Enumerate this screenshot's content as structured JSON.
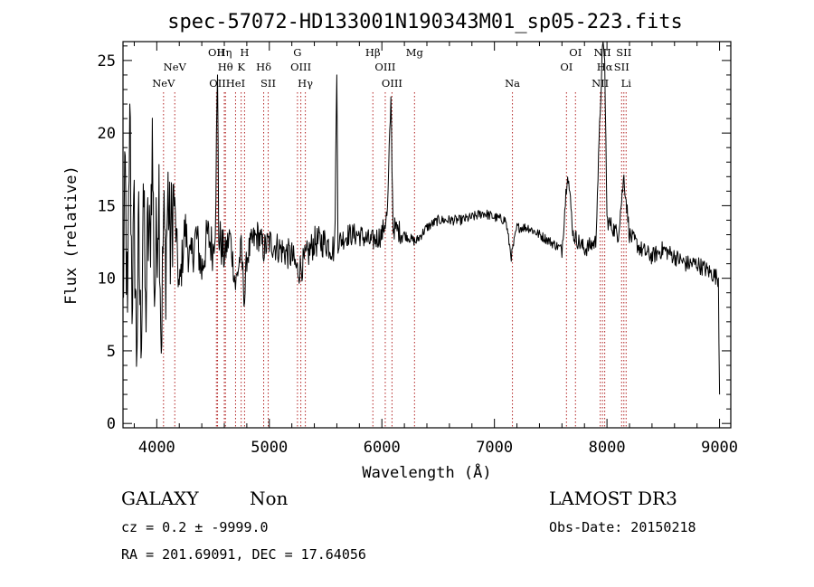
{
  "chart_data": {
    "type": "line",
    "title": "spec-57072-HD133001N190343M01_sp05-223.fits",
    "xlabel": "Wavelength (Å)",
    "ylabel": "Flux (relative)",
    "xlim": [
      3700,
      9100
    ],
    "ylim": [
      -0.3,
      26.3
    ],
    "x_ticks": [
      4000,
      5000,
      6000,
      7000,
      8000,
      9000
    ],
    "y_ticks": [
      0,
      5,
      10,
      15,
      20,
      25
    ],
    "series": [
      {
        "anchors": [
          [
            3700,
            8.0
          ],
          [
            3720,
            17.0
          ],
          [
            3740,
            6.0
          ],
          [
            3760,
            22.0
          ],
          [
            3780,
            9.0
          ],
          [
            3800,
            14.0
          ],
          [
            3820,
            5.0
          ],
          [
            3840,
            13.0
          ],
          [
            3860,
            4.5
          ],
          [
            3880,
            17.5
          ],
          [
            3900,
            7.0
          ],
          [
            3920,
            13.0
          ],
          [
            3940,
            12.0
          ],
          [
            3960,
            19.5
          ],
          [
            3980,
            9.0
          ],
          [
            4000,
            13.0
          ],
          [
            4020,
            16.5
          ],
          [
            4040,
            5.5
          ],
          [
            4060,
            14.0
          ],
          [
            4080,
            11.0
          ],
          [
            4100,
            16.0
          ],
          [
            4120,
            12.0
          ],
          [
            4150,
            16.0
          ],
          [
            4200,
            9.0
          ],
          [
            4250,
            13.5
          ],
          [
            4300,
            11.0
          ],
          [
            4350,
            13.0
          ],
          [
            4400,
            10.5
          ],
          [
            4450,
            13.0
          ],
          [
            4500,
            12.0
          ],
          [
            4520,
            14.0
          ],
          [
            4540,
            24.0
          ],
          [
            4550,
            13.0
          ],
          [
            4600,
            11.5
          ],
          [
            4650,
            13.0
          ],
          [
            4700,
            9.5
          ],
          [
            4750,
            12.0
          ],
          [
            4780,
            8.5
          ],
          [
            4800,
            11.5
          ],
          [
            4850,
            12.5
          ],
          [
            4900,
            13.0
          ],
          [
            4950,
            12.0
          ],
          [
            5000,
            12.5
          ],
          [
            5100,
            12.0
          ],
          [
            5200,
            11.5
          ],
          [
            5250,
            10.5
          ],
          [
            5300,
            11.0
          ],
          [
            5400,
            12.5
          ],
          [
            5500,
            12.5
          ],
          [
            5580,
            12.0
          ],
          [
            5600,
            24.0
          ],
          [
            5610,
            12.5
          ],
          [
            5700,
            13.0
          ],
          [
            5800,
            13.0
          ],
          [
            5900,
            12.5
          ],
          [
            6000,
            13.0
          ],
          [
            6050,
            14.5
          ],
          [
            6080,
            22.5
          ],
          [
            6100,
            13.5
          ],
          [
            6200,
            13.0
          ],
          [
            6300,
            12.5
          ],
          [
            6400,
            13.5
          ],
          [
            6500,
            14.0
          ],
          [
            6600,
            14.0
          ],
          [
            6700,
            14.0
          ],
          [
            6800,
            14.2
          ],
          [
            6900,
            14.5
          ],
          [
            7000,
            14.2
          ],
          [
            7100,
            14.0
          ],
          [
            7150,
            11.5
          ],
          [
            7200,
            13.5
          ],
          [
            7300,
            13.5
          ],
          [
            7400,
            13.0
          ],
          [
            7500,
            12.5
          ],
          [
            7600,
            12.0
          ],
          [
            7650,
            17.5
          ],
          [
            7700,
            13.0
          ],
          [
            7800,
            12.0
          ],
          [
            7900,
            12.5
          ],
          [
            7960,
            26.0
          ],
          [
            7980,
            25.0
          ],
          [
            8000,
            14.0
          ],
          [
            8100,
            13.0
          ],
          [
            8150,
            17.0
          ],
          [
            8200,
            13.0
          ],
          [
            8300,
            12.0
          ],
          [
            8400,
            11.5
          ],
          [
            8500,
            12.0
          ],
          [
            8600,
            11.5
          ],
          [
            8700,
            11.0
          ],
          [
            8800,
            11.0
          ],
          [
            8900,
            10.5
          ],
          [
            8990,
            10.0
          ],
          [
            9000,
            2.0
          ]
        ]
      }
    ],
    "line_markers": [
      {
        "label": "NeV",
        "wavelength": 4060,
        "row": 3
      },
      {
        "label": "NeV",
        "wavelength": 4160,
        "row": 2
      },
      {
        "label": "OII",
        "wavelength": 4530,
        "row": 1
      },
      {
        "label": "OII",
        "wavelength": 4540,
        "row": 3
      },
      {
        "label": "Hη",
        "wavelength": 4600,
        "row": 1
      },
      {
        "label": "Hθ",
        "wavelength": 4610,
        "row": 2
      },
      {
        "label": "HeI",
        "wavelength": 4700,
        "row": 3
      },
      {
        "label": "H",
        "wavelength": 4780,
        "row": 1
      },
      {
        "label": "K",
        "wavelength": 4750,
        "row": 2
      },
      {
        "label": "Hδ",
        "wavelength": 4950,
        "row": 2
      },
      {
        "label": "SII",
        "wavelength": 4990,
        "row": 3
      },
      {
        "label": "G",
        "wavelength": 5250,
        "row": 1
      },
      {
        "label": "OIII",
        "wavelength": 5280,
        "row": 2
      },
      {
        "label": "Hγ",
        "wavelength": 5320,
        "row": 3
      },
      {
        "label": "Hβ",
        "wavelength": 5920,
        "row": 1
      },
      {
        "label": "OIII",
        "wavelength": 6030,
        "row": 2
      },
      {
        "label": "OIII",
        "wavelength": 6090,
        "row": 3
      },
      {
        "label": "Mg",
        "wavelength": 6290,
        "row": 1
      },
      {
        "label": "Na",
        "wavelength": 7160,
        "row": 3
      },
      {
        "label": "OI",
        "wavelength": 7720,
        "row": 1
      },
      {
        "label": "OI",
        "wavelength": 7640,
        "row": 2
      },
      {
        "label": "NII",
        "wavelength": 7960,
        "row": 1
      },
      {
        "label": "Hα",
        "wavelength": 7980,
        "row": 2
      },
      {
        "label": "NII",
        "wavelength": 7940,
        "row": 3
      },
      {
        "label": "SII",
        "wavelength": 8150,
        "row": 1
      },
      {
        "label": "SII",
        "wavelength": 8130,
        "row": 2
      },
      {
        "label": "Li",
        "wavelength": 8170,
        "row": 3
      }
    ],
    "marker_color": "#b22222",
    "line_color": "#000000"
  },
  "info": {
    "object_class": "GALAXY",
    "subclass": "Non",
    "survey": "LAMOST DR3",
    "cz_line": "cz = 0.2 ± -9999.0",
    "obs_date": "Obs-Date: 20150218",
    "coords": "RA = 201.69091, DEC =  17.64056"
  }
}
